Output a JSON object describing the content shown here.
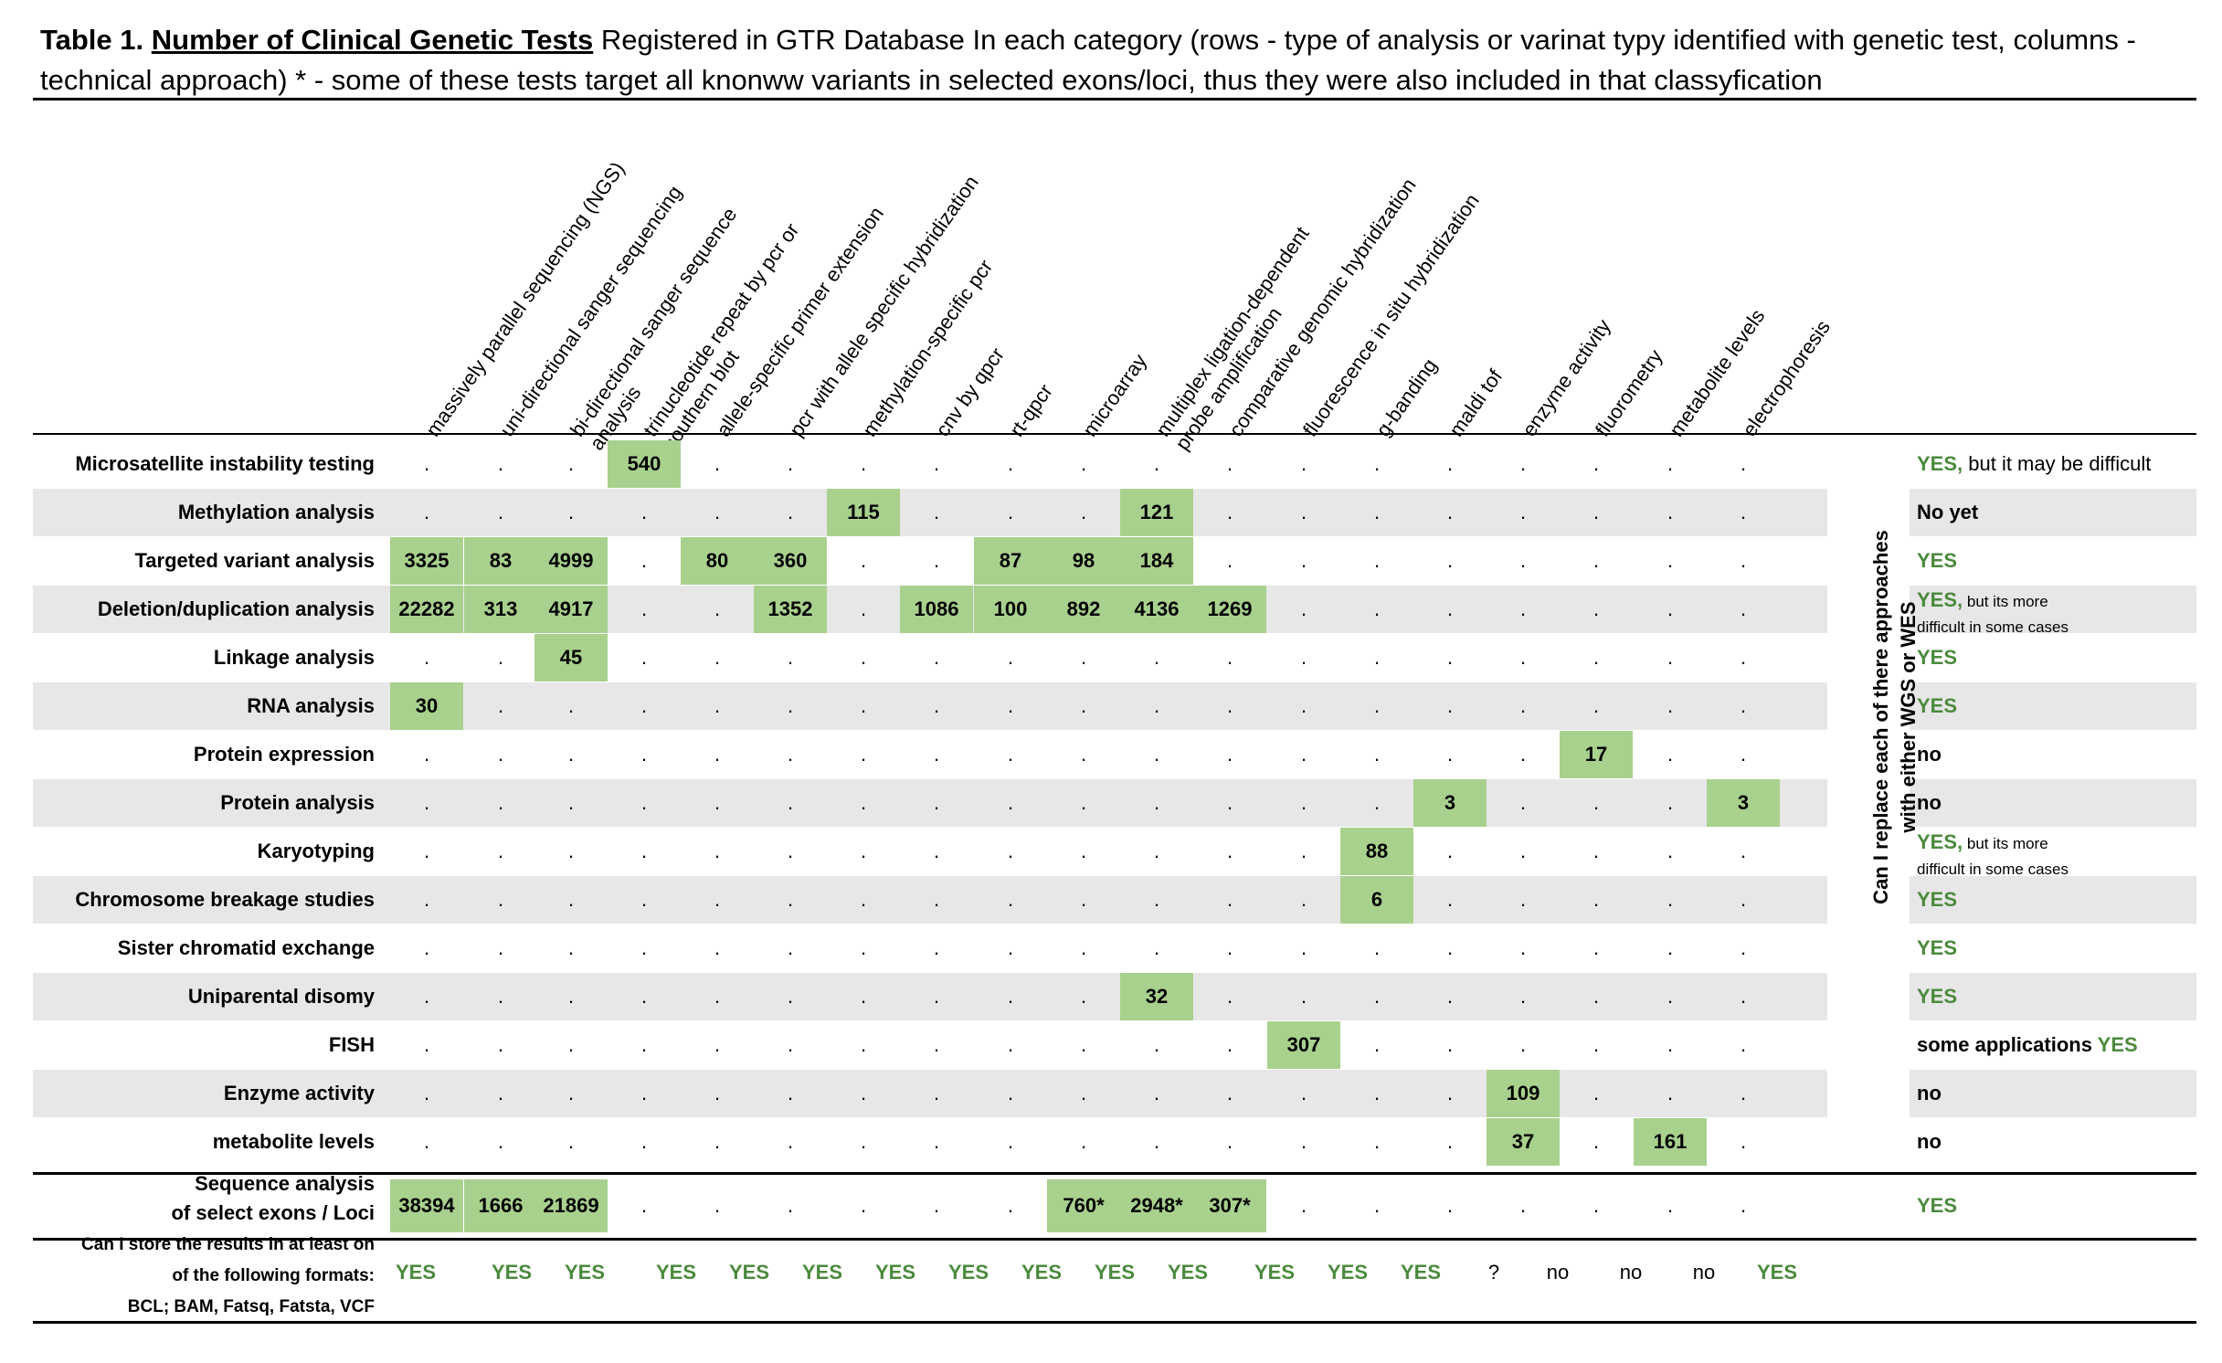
{
  "caption": {
    "prefix": "Table 1.",
    "title": "Number of Clinical Genetic Tests",
    "rest": "Registered in GTR Database In each category  (rows - type of analysis or varinat typy identified with genetic test, columns - technical approach) * - some of these tests target all knonww variants in selected exons/loci, thus they were also included in that classyfication"
  },
  "columns": [
    "massively parallel sequencing (NGS)",
    "uni-directional sanger sequencing",
    "bi-directional sanger sequence analysis",
    "trinucleotide repeat by pcr or southern blot",
    "allele-specific primer extension",
    "pcr with allele specific hybridization",
    "methylation-specific pcr",
    "cnv by qpcr",
    "rt-qpcr",
    "microarray",
    "multiplex ligation-dependent probe amplification",
    "comparative genomic hybridization",
    "fluorescence in situ hybridization",
    "g-banding",
    "maldi tof",
    "enzyme activity",
    "fluorometry",
    "metabolite levels",
    "electrophoresis"
  ],
  "rows": [
    {
      "label": "Microsatellite instability testing",
      "cells": [
        ".",
        ".",
        ".",
        "540",
        ".",
        ".",
        ".",
        ".",
        ".",
        ".",
        ".",
        ".",
        ".",
        ".",
        ".",
        ".",
        ".",
        ".",
        "."
      ],
      "answer": {
        "yes": "YES,",
        "rest": " but it may be difficult",
        "small": ""
      }
    },
    {
      "label": "Methylation analysis",
      "cells": [
        ".",
        ".",
        ".",
        ".",
        ".",
        ".",
        "115",
        ".",
        ".",
        ".",
        "121",
        ".",
        ".",
        ".",
        ".",
        ".",
        ".",
        ".",
        "."
      ],
      "answer": {
        "yes": "",
        "rest": "No yet",
        "small": ""
      }
    },
    {
      "label": "Targeted variant analysis",
      "cells": [
        "3325",
        "83",
        "4999",
        ".",
        "80",
        "360",
        ".",
        ".",
        "87",
        "98",
        "184",
        ".",
        ".",
        ".",
        ".",
        ".",
        ".",
        ".",
        "."
      ],
      "answer": {
        "yes": "YES",
        "rest": "",
        "small": ""
      }
    },
    {
      "label": "Deletion/duplication analysis",
      "cells": [
        "22282",
        "313",
        "4917",
        ".",
        ".",
        "1352",
        ".",
        "1086",
        "100",
        "892",
        "4136",
        "1269",
        ".",
        ".",
        ".",
        ".",
        ".",
        ".",
        "."
      ],
      "answer": {
        "yes": "YES,",
        "rest": "",
        "small": " but its more",
        "small2": "difficult in some cases"
      }
    },
    {
      "label": "Linkage analysis",
      "cells": [
        ".",
        ".",
        "45",
        ".",
        ".",
        ".",
        ".",
        ".",
        ".",
        ".",
        ".",
        ".",
        ".",
        ".",
        ".",
        ".",
        ".",
        ".",
        "."
      ],
      "answer": {
        "yes": "YES",
        "rest": "",
        "small": ""
      }
    },
    {
      "label": "RNA analysis",
      "cells": [
        "30",
        ".",
        ".",
        ".",
        ".",
        ".",
        ".",
        ".",
        ".",
        ".",
        ".",
        ".",
        ".",
        ".",
        ".",
        ".",
        ".",
        ".",
        "."
      ],
      "answer": {
        "yes": "YES",
        "rest": "",
        "small": ""
      }
    },
    {
      "label": "Protein expression",
      "cells": [
        ".",
        ".",
        ".",
        ".",
        ".",
        ".",
        ".",
        ".",
        ".",
        ".",
        ".",
        ".",
        ".",
        ".",
        ".",
        ".",
        "17",
        ".",
        "."
      ],
      "answer": {
        "yes": "",
        "rest": "no",
        "small": ""
      }
    },
    {
      "label": "Protein analysis",
      "cells": [
        ".",
        ".",
        ".",
        ".",
        ".",
        ".",
        ".",
        ".",
        ".",
        ".",
        ".",
        ".",
        ".",
        ".",
        "3",
        ".",
        ".",
        ".",
        "3"
      ],
      "answer": {
        "yes": "",
        "rest": "no",
        "small": ""
      }
    },
    {
      "label": "Karyotyping",
      "cells": [
        ".",
        ".",
        ".",
        ".",
        ".",
        ".",
        ".",
        ".",
        ".",
        ".",
        ".",
        ".",
        ".",
        "88",
        ".",
        ".",
        ".",
        ".",
        "."
      ],
      "answer": {
        "yes": "YES,",
        "rest": "",
        "small": "  but its more",
        "small2": "difficult in some cases"
      }
    },
    {
      "label": "Chromosome breakage studies",
      "cells": [
        ".",
        ".",
        ".",
        ".",
        ".",
        ".",
        ".",
        ".",
        ".",
        ".",
        ".",
        ".",
        ".",
        "6",
        ".",
        ".",
        ".",
        ".",
        "."
      ],
      "answer": {
        "yes": "YES",
        "rest": "",
        "small": ""
      }
    },
    {
      "label": "Sister chromatid exchange",
      "cells": [
        ".",
        ".",
        ".",
        ".",
        ".",
        ".",
        ".",
        ".",
        ".",
        ".",
        ".",
        ".",
        ".",
        ".",
        ".",
        ".",
        ".",
        ".",
        "."
      ],
      "answer": {
        "yes": "YES",
        "rest": "",
        "small": ""
      }
    },
    {
      "label": "Uniparental disomy",
      "cells": [
        ".",
        ".",
        ".",
        ".",
        ".",
        ".",
        ".",
        ".",
        ".",
        ".",
        "32",
        ".",
        ".",
        ".",
        ".",
        ".",
        ".",
        ".",
        "."
      ],
      "answer": {
        "yes": "YES",
        "rest": "",
        "small": ""
      }
    },
    {
      "label": "FISH",
      "cells": [
        ".",
        ".",
        ".",
        ".",
        ".",
        ".",
        ".",
        ".",
        ".",
        ".",
        ".",
        ".",
        "307",
        ".",
        ".",
        ".",
        ".",
        ".",
        "."
      ],
      "answer": {
        "pre": "some applications ",
        "yes": "YES",
        "rest": "",
        "small": ""
      }
    },
    {
      "label": "Enzyme activity",
      "cells": [
        ".",
        ".",
        ".",
        ".",
        ".",
        ".",
        ".",
        ".",
        ".",
        ".",
        ".",
        ".",
        ".",
        ".",
        ".",
        "109",
        ".",
        ".",
        "."
      ],
      "answer": {
        "yes": "",
        "rest": "no",
        "small": ""
      }
    },
    {
      "label": "metabolite levels",
      "cells": [
        ".",
        ".",
        ".",
        ".",
        ".",
        ".",
        ".",
        ".",
        ".",
        ".",
        ".",
        ".",
        ".",
        ".",
        ".",
        "37",
        ".",
        "161",
        "."
      ],
      "answer": {
        "yes": "",
        "rest": "no",
        "small": ""
      }
    }
  ],
  "sequence_row": {
    "label_line1": "Sequence analysis",
    "label_line2": "of select exons /  Loci",
    "cells": [
      "38394",
      "1666",
      "21869",
      ".",
      ".",
      ".",
      ".",
      ".",
      ".",
      "760*",
      "2948*",
      "307*",
      ".",
      ".",
      ".",
      ".",
      ".",
      ".",
      "."
    ],
    "answer": "YES"
  },
  "side_question": {
    "line1": "Can I replace each of there approaches",
    "line2": "with either WGS or WES"
  },
  "storage_question": {
    "line1": "Can I store the results   in at least on",
    "line2": "of the following formats:",
    "line3": "BCL; BAM, Fatsq, Fatsta, VCF"
  },
  "storage_answers": [
    "YES",
    "YES",
    "YES",
    "YES",
    "YES",
    "YES",
    "YES",
    "YES",
    "YES",
    "YES",
    "YES",
    "YES",
    "YES",
    "YES",
    "?",
    "no",
    "no",
    "no",
    "YES"
  ],
  "colors": {
    "highlight": "#a9d18e",
    "stripe": "#e7e7e7",
    "yes_green": "#4b8a3d"
  }
}
